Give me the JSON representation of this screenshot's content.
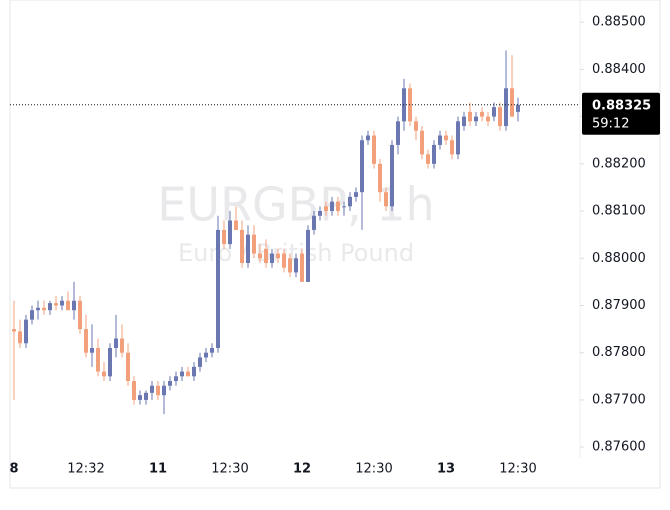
{
  "chart_data": {
    "type": "candlestick",
    "title": "EURGBP, 1h",
    "subtitle": "Euro / British Pound",
    "categories": [
      "8",
      null,
      null,
      null,
      null,
      null,
      null,
      null,
      null,
      null,
      null,
      null,
      "12:32",
      null,
      null,
      null,
      null,
      null,
      null,
      null,
      null,
      null,
      null,
      null,
      "11",
      null,
      null,
      null,
      null,
      null,
      null,
      null,
      null,
      null,
      null,
      null,
      "12:30",
      null,
      null,
      null,
      null,
      null,
      null,
      null,
      null,
      null,
      null,
      null,
      "12",
      null,
      null,
      null,
      null,
      null,
      null,
      null,
      null,
      null,
      null,
      null,
      "12:30",
      null,
      null,
      null,
      null,
      null,
      null,
      null,
      null,
      null,
      null,
      null,
      "13",
      null,
      null,
      null,
      null,
      null,
      null,
      null,
      null,
      null,
      null,
      null,
      "12:30"
    ],
    "open": [
      0.8785,
      0.87845,
      0.8782,
      0.8787,
      0.8789,
      0.87895,
      0.8789,
      0.87905,
      0.879,
      0.8791,
      0.8789,
      0.8791,
      0.8785,
      0.878,
      0.8781,
      0.8776,
      0.8775,
      0.8781,
      0.8783,
      0.878,
      0.8774,
      0.877,
      0.877,
      0.87715,
      0.8773,
      0.8771,
      0.8773,
      0.8774,
      0.8775,
      0.8776,
      0.8775,
      0.8777,
      0.8779,
      0.878,
      0.8781,
      0.8806,
      0.8803,
      0.8808,
      0.8806,
      0.8799,
      0.8805,
      0.8801,
      0.8802,
      0.8799,
      0.8801,
      0.8801,
      0.88,
      0.8797,
      0.8801,
      0.8795,
      0.8806,
      0.8809,
      0.8811,
      0.881,
      0.8812,
      0.8811,
      0.8811,
      0.8813,
      0.8814,
      0.8825,
      0.8826,
      0.882,
      0.8814,
      0.8811,
      0.8824,
      0.8829,
      0.8836,
      0.8829,
      0.8827,
      0.8822,
      0.882,
      0.8824,
      0.8826,
      0.8825,
      0.8822,
      0.8828,
      0.8831,
      0.8829,
      0.8831,
      0.883,
      0.883,
      0.8832,
      0.8828,
      0.8836,
      0.8831
    ],
    "high": [
      0.8791,
      0.8787,
      0.8788,
      0.879,
      0.8791,
      0.8791,
      0.8791,
      0.8792,
      0.8792,
      0.8793,
      0.8795,
      0.8792,
      0.8788,
      0.8786,
      0.8783,
      0.8778,
      0.8782,
      0.8788,
      0.8786,
      0.8782,
      0.8775,
      0.8772,
      0.8772,
      0.8774,
      0.8774,
      0.8774,
      0.8775,
      0.8776,
      0.8777,
      0.8777,
      0.8778,
      0.878,
      0.8781,
      0.8782,
      0.8809,
      0.8808,
      0.881,
      0.8811,
      0.8808,
      0.8807,
      0.8807,
      0.8803,
      0.8804,
      0.8802,
      0.8802,
      0.8802,
      0.8801,
      0.8801,
      0.8802,
      0.8807,
      0.881,
      0.8811,
      0.8812,
      0.8813,
      0.8813,
      0.8812,
      0.8814,
      0.8815,
      0.8826,
      0.8827,
      0.8827,
      0.8821,
      0.8815,
      0.8825,
      0.883,
      0.8838,
      0.8837,
      0.883,
      0.8828,
      0.8823,
      0.8825,
      0.8827,
      0.8827,
      0.8826,
      0.883,
      0.8831,
      0.8833,
      0.8831,
      0.8832,
      0.8831,
      0.8833,
      0.8833,
      0.8844,
      0.8843,
      0.8834
    ],
    "low": [
      0.877,
      0.8781,
      0.8781,
      0.8786,
      0.8787,
      0.8788,
      0.8788,
      0.8789,
      0.8789,
      0.8789,
      0.8787,
      0.8784,
      0.8779,
      0.8777,
      0.8775,
      0.8774,
      0.8774,
      0.8779,
      0.8779,
      0.8773,
      0.8769,
      0.8769,
      0.8769,
      0.877,
      0.877,
      0.8767,
      0.8772,
      0.8773,
      0.8774,
      0.8775,
      0.8774,
      0.8776,
      0.8778,
      0.8779,
      0.878,
      0.8802,
      0.8802,
      0.8806,
      0.8798,
      0.8798,
      0.88,
      0.8799,
      0.8798,
      0.8798,
      0.8799,
      0.8797,
      0.8796,
      0.8796,
      0.8795,
      0.8795,
      0.8805,
      0.8808,
      0.8809,
      0.8809,
      0.8809,
      0.8809,
      0.881,
      0.8812,
      0.8806,
      0.8824,
      0.8819,
      0.8812,
      0.881,
      0.881,
      0.8822,
      0.8827,
      0.8828,
      0.8825,
      0.8821,
      0.8819,
      0.8819,
      0.8823,
      0.8824,
      0.8821,
      0.8821,
      0.8827,
      0.8828,
      0.8828,
      0.8829,
      0.8828,
      0.8829,
      0.8827,
      0.8827,
      0.883,
      0.8829
    ],
    "close": [
      0.87845,
      0.8782,
      0.8787,
      0.8789,
      0.87895,
      0.8789,
      0.87905,
      0.879,
      0.8791,
      0.8789,
      0.8791,
      0.8785,
      0.878,
      0.8781,
      0.8776,
      0.8775,
      0.8781,
      0.8783,
      0.878,
      0.8774,
      0.877,
      0.8771,
      0.87715,
      0.8773,
      0.8771,
      0.8773,
      0.8774,
      0.8775,
      0.8776,
      0.8775,
      0.8777,
      0.8779,
      0.878,
      0.8781,
      0.8806,
      0.8803,
      0.8808,
      0.8806,
      0.8799,
      0.8805,
      0.8801,
      0.88,
      0.8799,
      0.8801,
      0.88,
      0.8798,
      0.8797,
      0.88,
      0.8795,
      0.8806,
      0.8809,
      0.881,
      0.881,
      0.8812,
      0.881,
      0.8811,
      0.8813,
      0.8814,
      0.8825,
      0.8826,
      0.882,
      0.8814,
      0.8811,
      0.8824,
      0.8829,
      0.8836,
      0.8829,
      0.8827,
      0.8822,
      0.882,
      0.8824,
      0.8826,
      0.8825,
      0.8822,
      0.8829,
      0.883,
      0.8829,
      0.883,
      0.883,
      0.8829,
      0.8832,
      0.8828,
      0.8836,
      0.883,
      0.88325
    ],
    "up_color": "#6a77b0",
    "down_color": "#f2a07b",
    "ylim": [
      0.87577,
      0.8853
    ],
    "yticks": [
      {
        "value": 0.876,
        "label": "0.87600"
      },
      {
        "value": 0.877,
        "label": "0.87700"
      },
      {
        "value": 0.878,
        "label": "0.87800"
      },
      {
        "value": 0.879,
        "label": "0.87900"
      },
      {
        "value": 0.88,
        "label": "0.88000"
      },
      {
        "value": 0.881,
        "label": "0.88100"
      },
      {
        "value": 0.882,
        "label": "0.88200"
      },
      {
        "value": 0.883,
        "label": "0.88300"
      },
      {
        "value": 0.884,
        "label": "0.88400"
      },
      {
        "value": 0.885,
        "label": "0.88500"
      }
    ],
    "last_price": 0.88325,
    "countdown": "59:12"
  }
}
